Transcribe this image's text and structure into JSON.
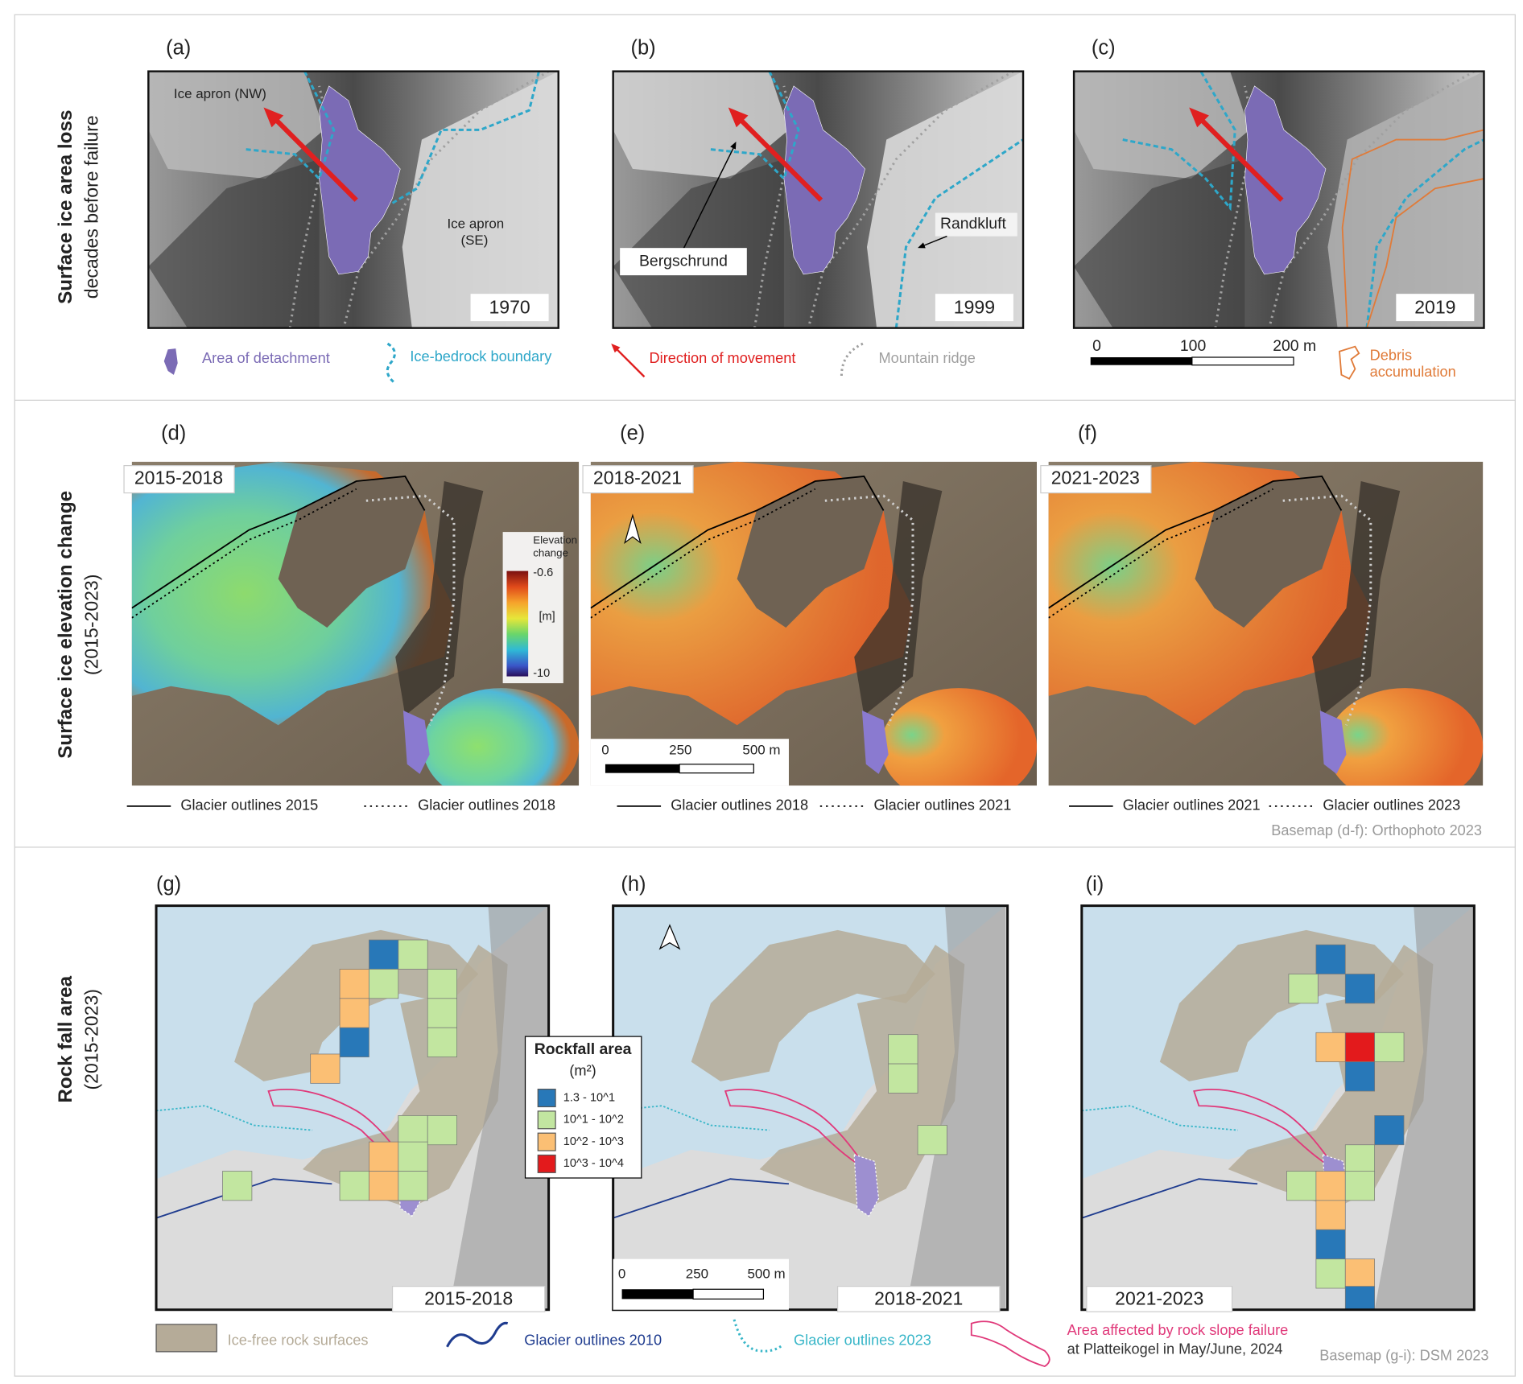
{
  "rows": [
    {
      "title": "Surface ice area loss",
      "subtitle": "decades before failure",
      "panels": [
        {
          "label": "(a)",
          "year": "1970",
          "annotations": [
            "Ice apron (NW)",
            "Ice apron",
            "(SE)"
          ]
        },
        {
          "label": "(b)",
          "year": "1999",
          "annotations": [
            "Bergschrund",
            "Randkluft"
          ]
        },
        {
          "label": "(c)",
          "year": "2019",
          "annotations": []
        }
      ],
      "legend": [
        {
          "label": "Area of detachment",
          "color": "#7b6bb5"
        },
        {
          "label": "Ice-bedrock boundary",
          "color": "#2ea7c9"
        },
        {
          "label": "Direction of movement",
          "color": "#e02020"
        },
        {
          "label": "Mountain ridge",
          "color": "#a0a0a0"
        },
        {
          "label": [
            "Debris",
            "accumulation"
          ],
          "color": "#e07b39"
        }
      ],
      "scale_bar": [
        "0",
        "100",
        "200 m"
      ]
    },
    {
      "title": "Surface ice elevation change",
      "subtitle": "(2015-2023)",
      "panels": [
        {
          "label": "(d)",
          "period": "2015-2018",
          "legend": [
            "Glacier outlines 2015",
            "Glacier outlines 2018"
          ]
        },
        {
          "label": "(e)",
          "period": "2018-2021",
          "legend": [
            "Glacier outlines 2018",
            "Glacier outlines 2021"
          ]
        },
        {
          "label": "(f)",
          "period": "2021-2023",
          "legend": [
            "Glacier outlines 2021",
            "Glacier outlines 2023"
          ]
        }
      ],
      "colorbar": {
        "title": [
          "Elevation",
          "change"
        ],
        "max_label": "-0.6",
        "unit": "[m]",
        "min_label": "-10"
      },
      "scale_bar": [
        "0",
        "250",
        "500 m"
      ],
      "source": "Basemap (d-f): Orthophoto 2023"
    },
    {
      "title": "Rock fall area",
      "subtitle": "(2015-2023)",
      "panels": [
        {
          "label": "(g)",
          "period": "2015-2018"
        },
        {
          "label": "(h)",
          "period": "2018-2021"
        },
        {
          "label": "(i)",
          "period": "2021-2023"
        }
      ],
      "rockfall_legend": {
        "title": "Rockfall area",
        "unit": "(m²)",
        "classes": [
          {
            "label": "1.3 - 10^1",
            "color": "#2878b8"
          },
          {
            "label": "10^1 - 10^2",
            "color": "#c2e6a0"
          },
          {
            "label": "10^2 - 10^3",
            "color": "#fbbf74"
          },
          {
            "label": "10^3 - 10^4",
            "color": "#e31a1c"
          }
        ]
      },
      "scale_bar": [
        "0",
        "250",
        "500 m"
      ],
      "legend": [
        {
          "label": "Ice-free rock surfaces",
          "color": "#b5ab98"
        },
        {
          "label": "Glacier outlines 2010",
          "color": "#1f3c8f"
        },
        {
          "label": "Glacier outlines 2023",
          "color": "#38b6c8"
        },
        {
          "label": [
            "Area affected by rock slope failure",
            "at Platteikogel in May/June, 2024"
          ],
          "color": "#e0397a"
        }
      ],
      "source": "Basemap (g-i): DSM 2023"
    }
  ]
}
